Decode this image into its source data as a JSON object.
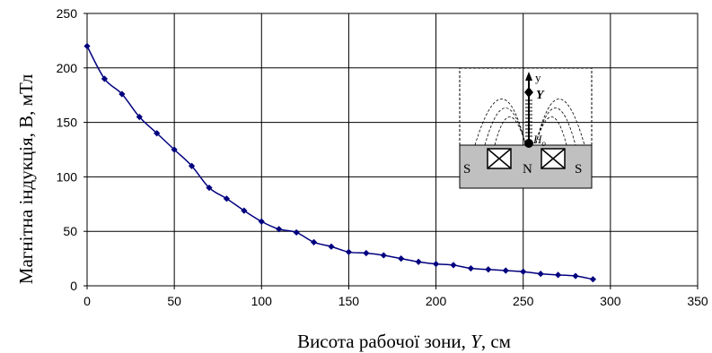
{
  "chart_data": {
    "type": "line",
    "xlabel_main": "Висота рабочої зони, ",
    "xlabel_var": "Y",
    "xlabel_unit": ", см",
    "ylabel": "Магнітна індукція, B, мТл",
    "xlim": [
      0,
      350
    ],
    "ylim": [
      0,
      250
    ],
    "x_ticks": [
      0,
      50,
      100,
      150,
      200,
      250,
      300,
      350
    ],
    "y_ticks": [
      0,
      50,
      100,
      150,
      200,
      250
    ],
    "grid": true,
    "line_color": "#00007f",
    "x": [
      0,
      10,
      20,
      30,
      40,
      50,
      60,
      70,
      80,
      90,
      100,
      110,
      120,
      130,
      140,
      150,
      160,
      170,
      180,
      190,
      200,
      210,
      220,
      230,
      240,
      250,
      260,
      270,
      280,
      290
    ],
    "values": [
      220,
      190,
      176,
      155,
      140,
      125,
      110,
      90,
      80,
      69,
      59,
      52,
      49,
      40,
      36,
      31,
      30,
      28,
      25,
      22,
      20,
      19,
      16,
      15,
      14,
      13,
      11,
      10,
      9,
      6
    ],
    "inset": {
      "label_y": "y",
      "label_Y": "Y",
      "label_H": "H",
      "label_H_sub": "o",
      "label_S_left": "S",
      "label_N": "N",
      "label_S_right": "S"
    }
  }
}
